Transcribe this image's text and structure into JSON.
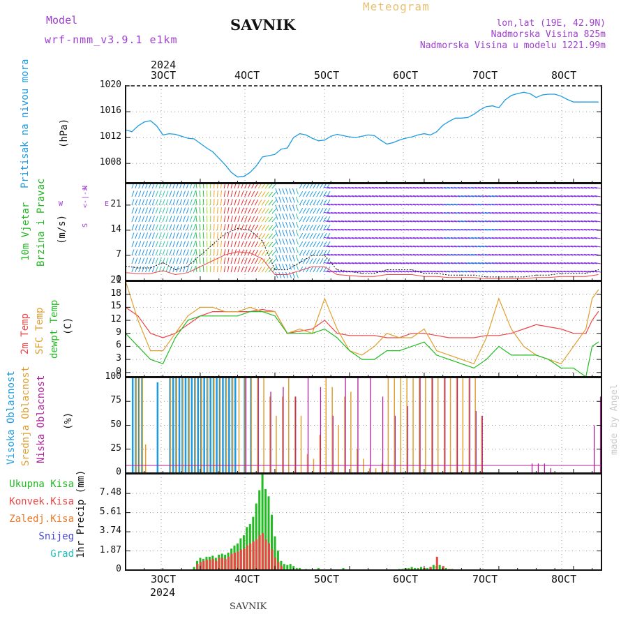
{
  "header": {
    "model_label": "Model",
    "model_name": "wrf-nmm_v3.9.1 e1km",
    "station": "SAVNIK",
    "meteogram": "Meteogram",
    "lonlat": "lon,lat (19E, 42.9N)",
    "altitude": "Nadmorska Visina 825m",
    "model_altitude": "Nadmorska Visina u modelu 1221.99m",
    "year_top": "2024",
    "year_bottom": "2024",
    "footer_station": "SAVNIK",
    "credit": "made by Angel"
  },
  "colors": {
    "pressure": "#1e9be0",
    "wind_label": "#22b922",
    "temp2m": "#ee4444",
    "sfc": "#e0a030",
    "dew": "#22bb22",
    "high_cloud": "#1e9be0",
    "mid_cloud": "#e0a030",
    "low_cloud": "#b0209a",
    "total_precip": "#22bb22",
    "conv_precip": "#ee4444",
    "frozen": "#ee7722",
    "snow": "#4444dd",
    "hail": "#22bbbb",
    "purple_text": "#a040d0",
    "gold_text": "#e8c070"
  },
  "time_axis": {
    "labels": [
      "3OCT",
      "4OCT",
      "5OCT",
      "6OCT",
      "7OCT",
      "8OCT"
    ]
  },
  "panels": {
    "pressure": {
      "label": "Pritisak na nivou mora",
      "unit": "(hPa)",
      "yticks": [
        "1008",
        "1012",
        "1016",
        "1020"
      ]
    },
    "wind": {
      "label1": "10m Vjetar",
      "label2": "Brzina i Pravac",
      "unit": "(m/s)",
      "yticks": [
        "0",
        "7",
        "14",
        "21"
      ],
      "compass": {
        "n": "N",
        "s": "S",
        "w": "W",
        "e": "E",
        "glyph": "<-|->"
      }
    },
    "temp": {
      "label1": "2m Temp",
      "label2": "SFC Temp",
      "label3": "dewpt Temp",
      "unit": "(C)",
      "yticks": [
        "0",
        "3",
        "6",
        "9",
        "12",
        "15",
        "18",
        "21"
      ]
    },
    "cloud": {
      "label1": "Visoka Oblacnost",
      "label2": "Srednja Oblacnost",
      "label3": "Niska Oblacnost",
      "unit": "(%)",
      "yticks": [
        "0",
        "25",
        "50",
        "75",
        "100"
      ]
    },
    "precip": {
      "unit": "1hr Precip (mm)",
      "yticks": [
        "0",
        "1.87",
        "3.74",
        "5.61",
        "7.48"
      ],
      "legend": [
        "Ukupna Kisa",
        "Konvek.Kisa",
        "Zaledj.Kisa",
        "Snijeg",
        "Grad"
      ]
    }
  },
  "chart_data": [
    {
      "type": "line",
      "name": "pressure",
      "x_unit": "hours from 2 Oct 13:00 UTC",
      "x": [
        0,
        2,
        4,
        6,
        8,
        10,
        12,
        14,
        16,
        18,
        20,
        22,
        24,
        26,
        28,
        30,
        32,
        34,
        36,
        38,
        40,
        42,
        44,
        46,
        48,
        50,
        52,
        54,
        56,
        58,
        60,
        62,
        64,
        66,
        68,
        70,
        72,
        74,
        76,
        78,
        80,
        82,
        84,
        86,
        88,
        90,
        92,
        94,
        96,
        98,
        100,
        102,
        104,
        106,
        108,
        110,
        112,
        114,
        116,
        118,
        120,
        122,
        124,
        126,
        128,
        130,
        132,
        134,
        136,
        138,
        140,
        142,
        144,
        146,
        148,
        150,
        152
      ],
      "y": [
        1013.2,
        1012.9,
        1013.8,
        1014.4,
        1014.6,
        1013.8,
        1012.4,
        1012.6,
        1012.5,
        1012.2,
        1011.9,
        1011.8,
        1011.1,
        1010.4,
        1009.8,
        1008.8,
        1007.8,
        1006.6,
        1005.9,
        1006.0,
        1006.6,
        1007.6,
        1009.0,
        1009.2,
        1009.4,
        1010.2,
        1010.4,
        1012.0,
        1012.6,
        1012.4,
        1011.9,
        1011.5,
        1011.6,
        1012.2,
        1012.5,
        1012.3,
        1012.1,
        1012.0,
        1012.2,
        1012.4,
        1012.3,
        1011.6,
        1011.0,
        1011.2,
        1011.6,
        1011.9,
        1012.1,
        1012.4,
        1012.6,
        1012.4,
        1012.9,
        1013.9,
        1014.5,
        1015.0,
        1015.0,
        1015.1,
        1015.6,
        1016.3,
        1016.8,
        1016.9,
        1016.6,
        1017.8,
        1018.5,
        1018.8,
        1019.0,
        1018.8,
        1018.2,
        1018.6,
        1018.7,
        1018.7,
        1018.4,
        1017.9,
        1017.5,
        1017.5,
        1017.5,
        1017.5,
        1017.5
      ],
      "ylim": [
        1005,
        1020
      ],
      "yticks": [
        1008,
        1012,
        1016,
        1020
      ],
      "grid": true
    },
    {
      "type": "line",
      "name": "wind",
      "x_unit": "hours from 2 Oct 13:00 UTC",
      "x": [
        0,
        4,
        8,
        12,
        16,
        20,
        24,
        28,
        32,
        36,
        40,
        44,
        48,
        52,
        56,
        60,
        64,
        68,
        72,
        76,
        80,
        84,
        88,
        92,
        96,
        100,
        104,
        108,
        112,
        116,
        120,
        124,
        128,
        132,
        136,
        140,
        144,
        148,
        152
      ],
      "y": [
        4,
        3.5,
        3.5,
        5,
        3,
        4,
        7,
        10,
        13,
        14.5,
        14,
        11,
        3,
        3,
        5,
        7,
        7,
        3,
        2.5,
        2,
        2,
        3,
        3,
        3,
        2,
        2,
        1.5,
        1.5,
        1.5,
        1,
        1,
        1,
        1,
        1.5,
        1.5,
        2,
        2,
        2,
        3
      ],
      "ylim": [
        0,
        27
      ],
      "yticks": [
        0,
        7,
        14,
        21
      ],
      "grid": true
    },
    {
      "type": "line",
      "x_unit": "hours from 2 Oct 13:00 UTC",
      "series": [
        {
          "name": "2m Temp",
          "x": [
            0,
            4,
            8,
            12,
            16,
            20,
            24,
            28,
            32,
            36,
            40,
            44,
            48,
            52,
            56,
            60,
            64,
            68,
            72,
            76,
            80,
            84,
            88,
            92,
            96,
            100,
            104,
            108,
            112,
            116,
            120,
            124,
            128,
            132,
            136,
            140,
            144,
            148,
            150,
            152
          ],
          "y": [
            15,
            13,
            9,
            8,
            9,
            11,
            13,
            14,
            14,
            14,
            14,
            14.5,
            14,
            9,
            9.5,
            10,
            12,
            9,
            8.5,
            8.5,
            8.5,
            8,
            8,
            9,
            9,
            8.5,
            8,
            8,
            8,
            8.5,
            8.5,
            9,
            10,
            11,
            10.5,
            10,
            9,
            9,
            12,
            14
          ]
        },
        {
          "name": "SFC Temp",
          "x": [
            0,
            4,
            8,
            12,
            16,
            20,
            24,
            28,
            32,
            36,
            40,
            44,
            48,
            52,
            56,
            60,
            64,
            68,
            72,
            76,
            80,
            84,
            88,
            92,
            96,
            100,
            104,
            108,
            112,
            116,
            120,
            124,
            128,
            132,
            136,
            140,
            144,
            148,
            150,
            152
          ],
          "y": [
            21,
            12,
            5,
            5,
            9,
            13,
            15,
            15,
            14,
            14,
            15,
            14,
            14,
            9,
            10,
            9,
            17,
            10,
            5,
            4,
            6,
            9,
            8,
            8,
            10,
            5,
            4,
            3,
            2,
            8,
            17,
            10,
            6,
            4,
            3,
            2,
            6,
            10,
            17,
            19
          ]
        },
        {
          "name": "dewpt Temp",
          "x": [
            0,
            4,
            8,
            12,
            16,
            20,
            24,
            28,
            32,
            36,
            40,
            44,
            48,
            52,
            56,
            60,
            64,
            68,
            72,
            76,
            80,
            84,
            88,
            92,
            96,
            100,
            104,
            108,
            112,
            116,
            120,
            124,
            128,
            132,
            136,
            140,
            144,
            148,
            150,
            152
          ],
          "y": [
            9,
            6,
            3,
            2,
            8,
            12,
            13,
            13,
            13,
            13,
            14,
            14,
            13,
            9,
            9,
            9,
            10,
            8,
            5,
            3,
            3,
            5,
            5,
            6,
            7,
            4,
            3,
            2,
            1,
            3,
            6,
            4,
            4,
            4,
            3,
            1,
            1,
            -1,
            6,
            7
          ]
        }
      ],
      "ylim": [
        -1,
        21
      ],
      "yticks": [
        0,
        3,
        6,
        9,
        12,
        15,
        18,
        21
      ],
      "grid": true
    },
    {
      "type": "bar",
      "x_unit": "hours from 2 Oct 13:00 UTC",
      "series": [
        {
          "name": "Visoka Oblacnost",
          "x": [
            2,
            3,
            4,
            5,
            10,
            14,
            15,
            16,
            17,
            18,
            19,
            20,
            21,
            22,
            23,
            24,
            25,
            26,
            27,
            28,
            29,
            30,
            31,
            32,
            33,
            34,
            35,
            38,
            40
          ],
          "y": [
            100,
            100,
            100,
            100,
            95,
            100,
            100,
            100,
            100,
            100,
            100,
            100,
            100,
            100,
            100,
            100,
            100,
            100,
            100,
            100,
            100,
            100,
            100,
            100,
            100,
            100,
            100,
            100,
            100
          ]
        },
        {
          "name": "Srednja Oblacnost",
          "x": [
            3,
            4,
            5,
            6,
            14,
            16,
            18,
            20,
            22,
            24,
            26,
            28,
            30,
            32,
            34,
            36,
            38,
            40,
            42,
            44,
            46,
            48,
            50,
            52,
            54,
            56,
            58,
            60,
            62,
            64,
            66,
            68,
            70,
            72,
            74,
            76,
            78,
            80,
            82,
            84,
            86,
            88,
            90,
            92,
            94,
            96,
            98,
            100,
            102,
            104,
            106,
            108,
            110,
            112,
            114
          ],
          "y": [
            100,
            100,
            100,
            30,
            100,
            100,
            100,
            100,
            100,
            100,
            100,
            100,
            100,
            100,
            100,
            100,
            100,
            100,
            100,
            100,
            80,
            60,
            80,
            100,
            80,
            60,
            20,
            15,
            40,
            100,
            90,
            50,
            80,
            85,
            25,
            15,
            5,
            5,
            10,
            100,
            100,
            100,
            100,
            100,
            100,
            100,
            100,
            100,
            100,
            100,
            100,
            100,
            100,
            100,
            60
          ]
        },
        {
          "name": "Niska Oblacnost",
          "x": [
            38,
            42,
            46,
            50,
            54,
            58,
            62,
            66,
            70,
            74,
            78,
            82,
            86,
            90,
            94,
            98,
            102,
            106,
            110,
            112,
            114,
            130,
            132,
            134,
            136,
            150,
            152
          ],
          "y": [
            100,
            100,
            85,
            90,
            80,
            100,
            90,
            60,
            100,
            100,
            100,
            80,
            60,
            70,
            100,
            100,
            100,
            100,
            100,
            65,
            60,
            10,
            10,
            10,
            5,
            50,
            80
          ]
        }
      ],
      "ylim": [
        0,
        100
      ],
      "yticks": [
        0,
        25,
        50,
        75,
        100
      ],
      "grid": true
    },
    {
      "type": "bar",
      "x_unit": "hours from 2 Oct 13:00 UTC",
      "series": [
        {
          "name": "Ukupna Kisa",
          "x": [
            22,
            23,
            24,
            25,
            26,
            27,
            28,
            29,
            30,
            31,
            32,
            33,
            34,
            35,
            36,
            37,
            38,
            39,
            40,
            41,
            42,
            43,
            44,
            45,
            46,
            47,
            48,
            49,
            50,
            51,
            52,
            53,
            54,
            55,
            56,
            58,
            62,
            70,
            88,
            89,
            90,
            91,
            92,
            93,
            94,
            95,
            96,
            97,
            98,
            99,
            100,
            101,
            102,
            103,
            104,
            105
          ],
          "y": [
            0.3,
            0.9,
            1.2,
            1.1,
            1.3,
            1.3,
            1.4,
            1.2,
            1.5,
            1.6,
            1.5,
            1.7,
            2.1,
            2.4,
            2.6,
            3.1,
            3.4,
            4.2,
            4.5,
            5.2,
            6.5,
            7.8,
            9.4,
            7.9,
            7.2,
            5.4,
            3.3,
            1.9,
            0.9,
            0.6,
            0.5,
            0.6,
            0.4,
            0.2,
            0.2,
            0.1,
            0.2,
            0.2,
            0.1,
            0.1,
            0.2,
            0.2,
            0.3,
            0.2,
            0.2,
            0.3,
            0.2,
            0.2,
            0.3,
            0.5,
            0.4,
            0.5,
            0.3,
            0.2,
            0.1,
            0.1
          ]
        },
        {
          "name": "Konvek.Kisa",
          "x": [
            23,
            24,
            25,
            26,
            27,
            28,
            29,
            30,
            31,
            32,
            33,
            34,
            35,
            36,
            37,
            38,
            39,
            40,
            41,
            42,
            43,
            44,
            45,
            46,
            47,
            48,
            49,
            50,
            90,
            92,
            94,
            96,
            98,
            100,
            102,
            104
          ],
          "y": [
            0.6,
            0.8,
            0.9,
            1.0,
            1.0,
            1.1,
            0.9,
            1.2,
            1.2,
            1.1,
            1.3,
            1.6,
            1.7,
            1.8,
            2.0,
            2.1,
            2.4,
            2.6,
            2.8,
            3.0,
            3.4,
            3.6,
            3.0,
            2.6,
            2.0,
            1.2,
            0.8,
            0.4,
            0.1,
            0.1,
            0.1,
            0.2,
            0.3,
            1.3,
            0.4,
            0.1
          ]
        }
      ],
      "ylim": [
        0,
        9.4
      ],
      "yticks": [
        0,
        1.87,
        3.74,
        5.61,
        7.48
      ],
      "grid": true
    }
  ]
}
